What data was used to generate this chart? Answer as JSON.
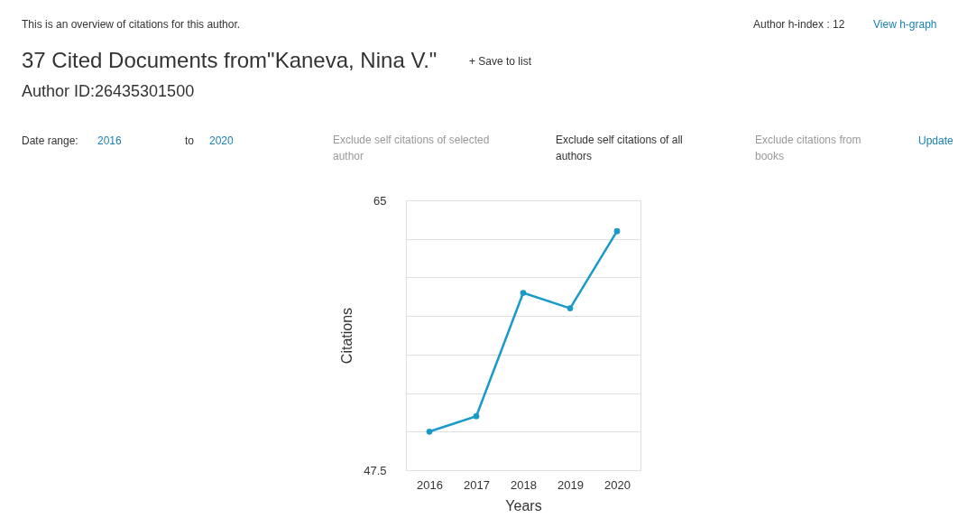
{
  "chart_data": {
    "type": "line",
    "title": "37 Cited Documents from\"Kaneva, Nina V.\"",
    "subtitle": "Author ID:26435301500",
    "xlabel": "Years",
    "ylabel": "Citations",
    "categories": [
      "2016",
      "2017",
      "2018",
      "2019",
      "2020"
    ],
    "series": [
      {
        "color": "#1a9ac9",
        "values": [
          50,
          51,
          59,
          58,
          63
        ]
      }
    ],
    "ylim": [
      47.5,
      65
    ],
    "yticks": [
      47.5,
      {
        "value": 50,
        "label": null
      },
      {
        "value": 52.5,
        "label": null
      },
      {
        "value": 55,
        "label": null
      },
      {
        "value": 57.5,
        "label": null
      },
      {
        "value": 60,
        "label": null
      },
      {
        "value": 62.5,
        "label": null
      },
      65
    ],
    "grid": "y",
    "marker": "circle",
    "line_style": "solid",
    "annotations": [
      "This is an overview of citations for this author.",
      "Author h-index : 12",
      "View h-graph",
      "+ Save to list",
      "Date range:",
      "2016",
      "to",
      "2020",
      "Exclude self citations of selected author",
      "Exclude self citations of all authors",
      "Exclude citations from books",
      "Update"
    ]
  }
}
